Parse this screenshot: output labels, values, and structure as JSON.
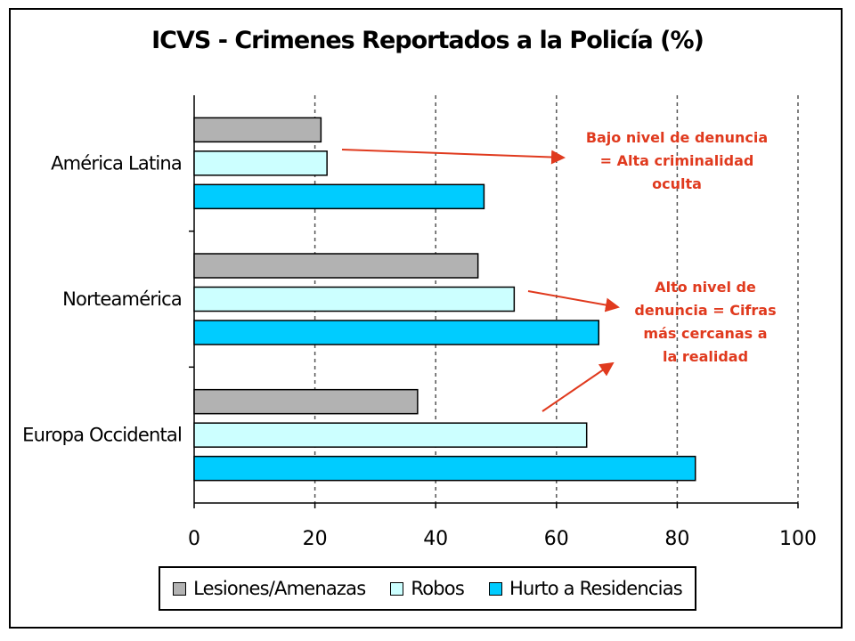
{
  "chart_data": {
    "type": "bar",
    "orientation": "horizontal",
    "title": "ICVS - Crimenes Reportados a la Policía (%)",
    "categories": [
      "América Latina",
      "Norteamérica",
      "Europa Occidental"
    ],
    "series": [
      {
        "name": "Lesiones/Amenazas",
        "color": "#b2b2b2",
        "values": [
          21,
          47,
          37
        ]
      },
      {
        "name": "Robos",
        "color": "#ccffff",
        "values": [
          22,
          53,
          65
        ]
      },
      {
        "name": "Hurto a Residencias",
        "color": "#00ccff",
        "values": [
          48,
          67,
          83
        ]
      }
    ],
    "xlim": [
      0,
      100
    ],
    "xticks": [
      "0",
      "20",
      "40",
      "60",
      "80",
      "100"
    ],
    "grid": "vertical dashed",
    "legend": "bottom",
    "annotations": [
      {
        "text": "Bajo nivel de denuncia = Alta criminalidad oculta"
      },
      {
        "text": "Alto nivel de denuncia = Cifras más cercanas a la realidad"
      }
    ]
  }
}
